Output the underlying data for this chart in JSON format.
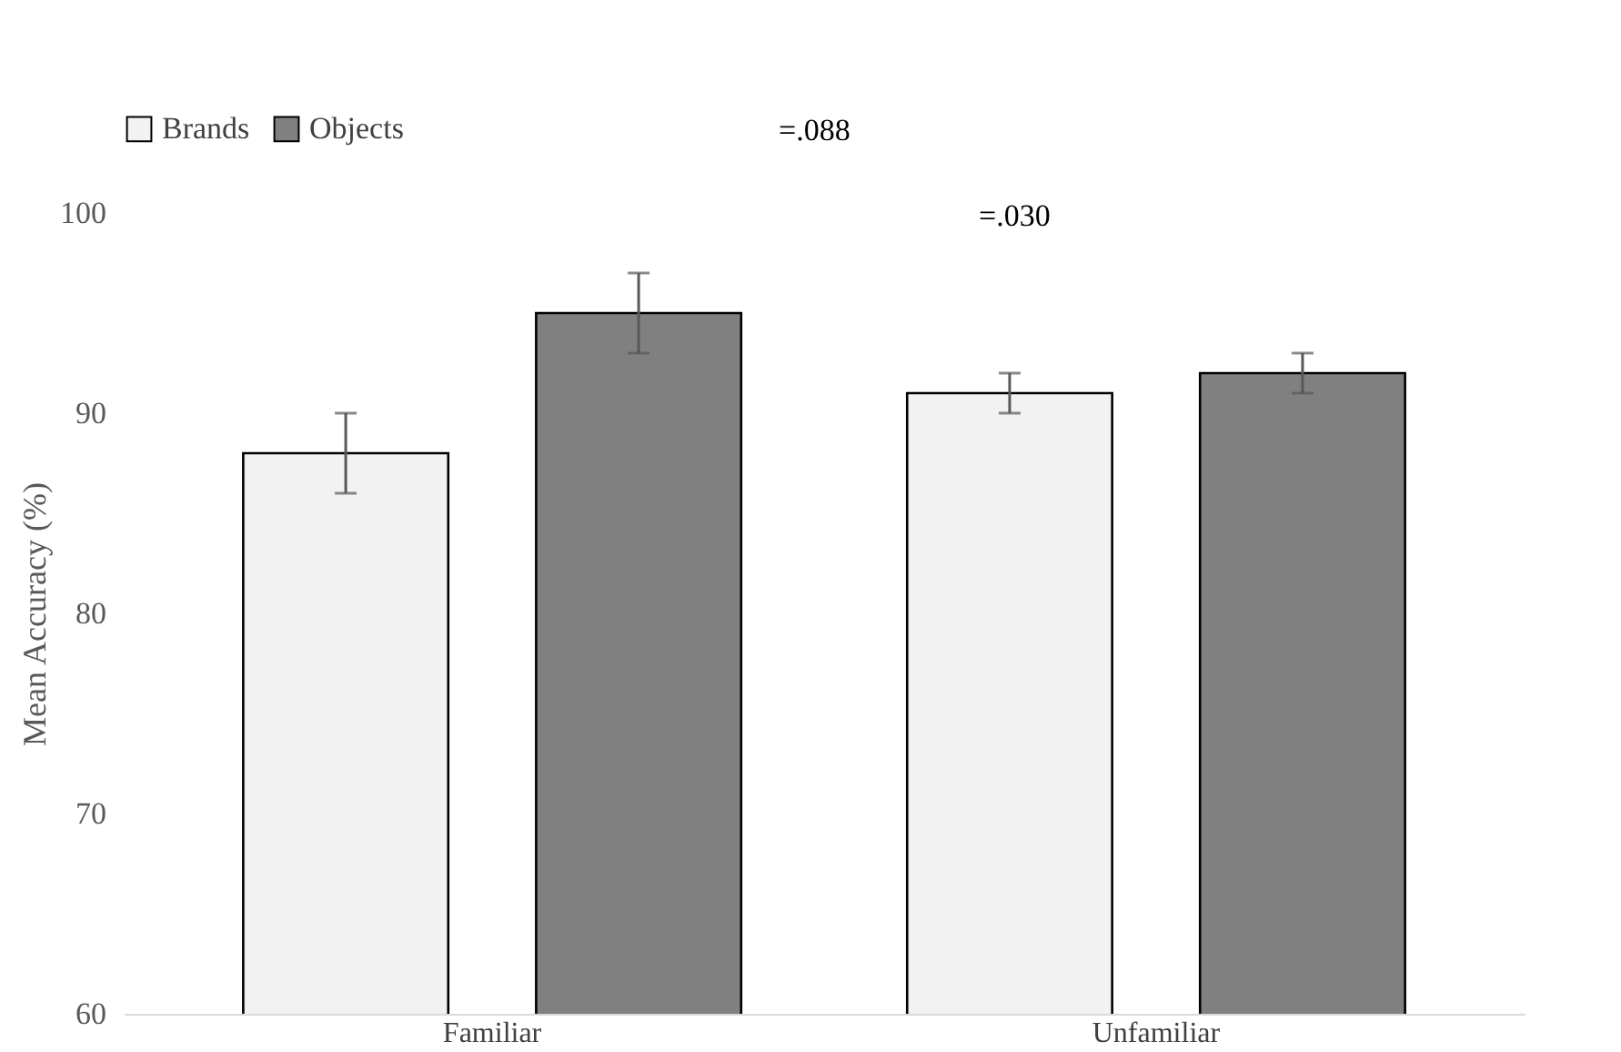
{
  "chart_data": {
    "type": "bar",
    "ylabel": "Mean Accuracy (%)",
    "categories": [
      "Familiar",
      "Unfamiliar"
    ],
    "series": [
      {
        "name": "Brands",
        "color": "#f2f2f2",
        "values": [
          88,
          91
        ],
        "errors": [
          2,
          1
        ]
      },
      {
        "name": "Objects",
        "color": "#808080",
        "values": [
          95,
          92
        ],
        "errors": [
          2,
          1
        ]
      }
    ],
    "ylim": [
      60,
      100
    ],
    "yticks": [
      60,
      70,
      80,
      90,
      100
    ],
    "grid": false,
    "legend": "top left",
    "annotations": [
      "=.088",
      "=.030"
    ]
  }
}
